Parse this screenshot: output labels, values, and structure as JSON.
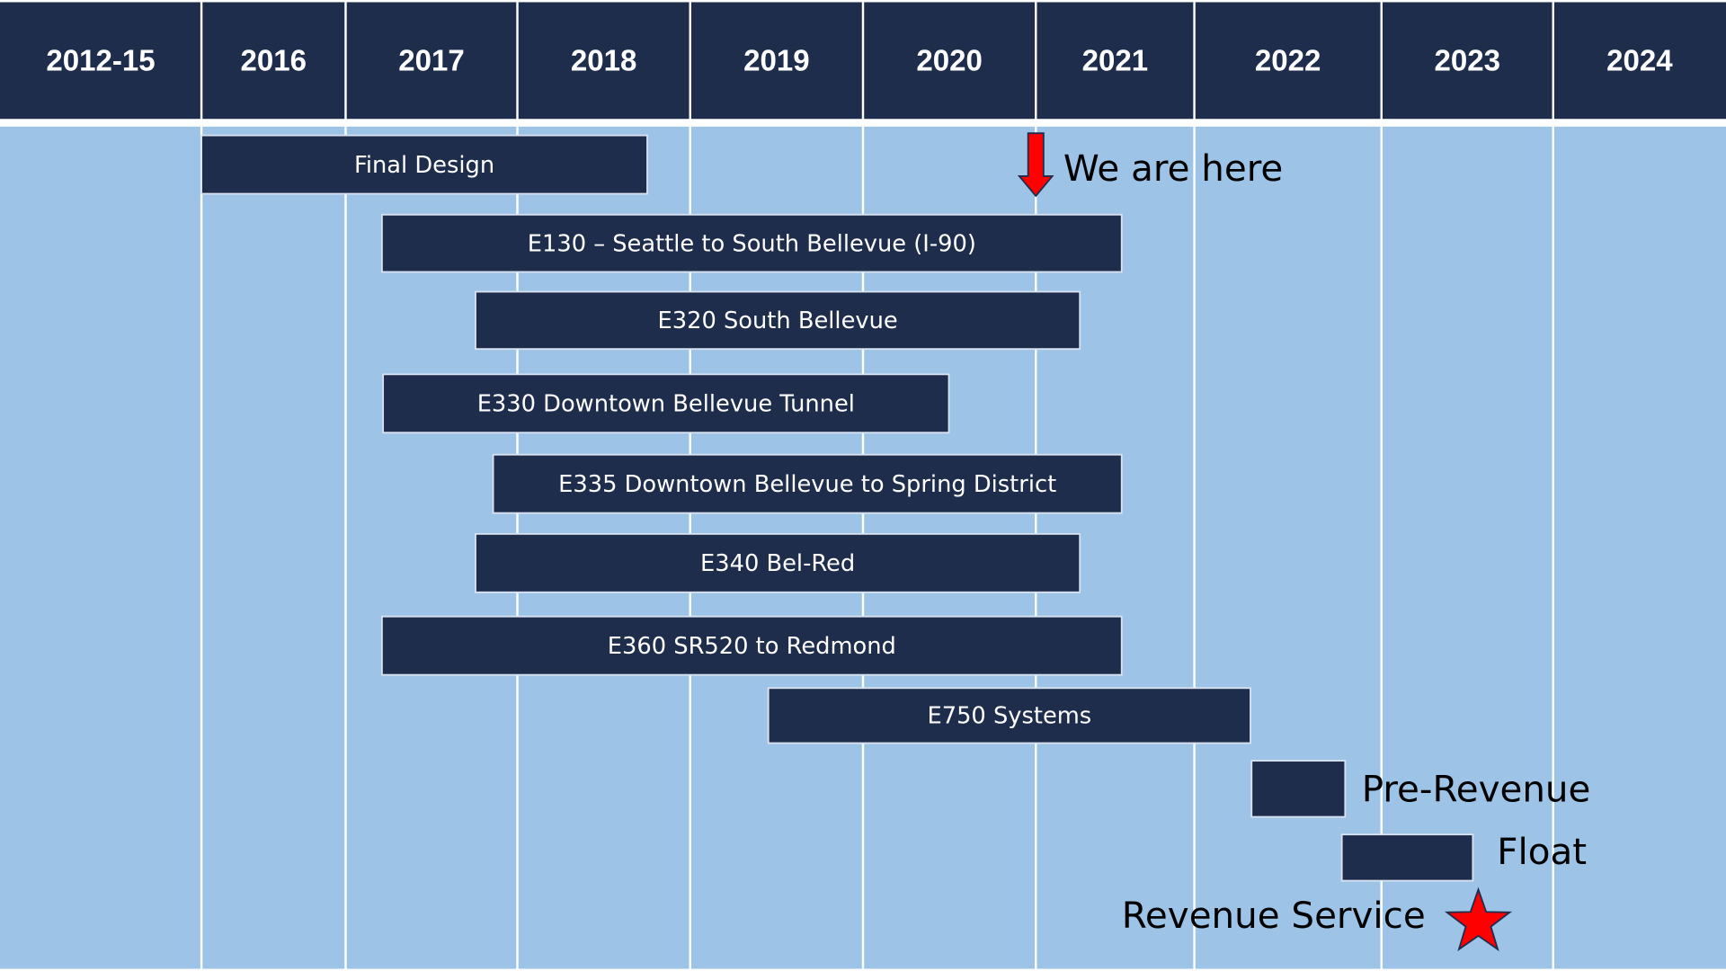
{
  "header": {
    "columns": [
      "2012-15",
      "2016",
      "2017",
      "2018",
      "2019",
      "2020",
      "2021",
      "2022",
      "2023",
      "2024"
    ]
  },
  "tasks": [
    {
      "label": "Final Design"
    },
    {
      "label": "E130 – Seattle to South Bellevue (I-90)"
    },
    {
      "label": "E320 South Bellevue"
    },
    {
      "label": "E330 Downtown Bellevue Tunnel"
    },
    {
      "label": "E335 Downtown Bellevue to Spring District"
    },
    {
      "label": "E340 Bel-Red"
    },
    {
      "label": "E360 SR520 to Redmond"
    },
    {
      "label": "E750 Systems"
    }
  ],
  "marker": {
    "label": "We are here"
  },
  "milestones": [
    {
      "label": "Pre-Revenue"
    },
    {
      "label": "Float"
    },
    {
      "label": "Revenue Service"
    }
  ]
}
